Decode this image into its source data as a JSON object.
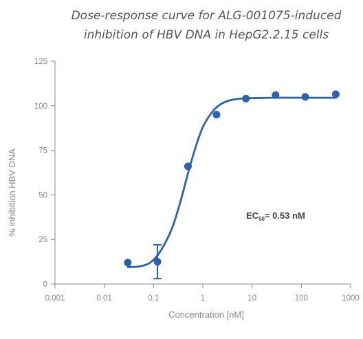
{
  "chart_data": {
    "type": "scatter",
    "title_lines": [
      "Dose-response curve for ALG-001075-induced",
      "inhibition of HBV DNA in HepG2.2.15 cells"
    ],
    "xlabel": "Concentration [nM]",
    "ylabel": "% inhibition HBV DNA",
    "x_scale": "log",
    "xlim": [
      0.001,
      1000
    ],
    "ylim": [
      0,
      125
    ],
    "x_ticks": [
      0.001,
      0.01,
      0.1,
      1,
      10,
      100,
      1000
    ],
    "x_tick_labels": [
      "0.001",
      "0.01",
      "0.1",
      "1",
      "10",
      "100",
      "1000"
    ],
    "y_ticks": [
      0,
      25,
      50,
      75,
      100,
      125
    ],
    "y_tick_labels": [
      "0",
      "25",
      "50",
      "75",
      "100",
      "125"
    ],
    "grid": false,
    "series": [
      {
        "points": [
          {
            "x": 0.03,
            "y": 12
          },
          {
            "x": 0.12,
            "y": 12.5,
            "error": [
              3,
              22
            ]
          },
          {
            "x": 0.5,
            "y": 66
          },
          {
            "x": 1.9,
            "y": 95
          },
          {
            "x": 7.5,
            "y": 104
          },
          {
            "x": 30,
            "y": 106
          },
          {
            "x": 120,
            "y": 105
          },
          {
            "x": 500,
            "y": 106.5
          }
        ]
      }
    ],
    "fit_curve": {
      "points": [
        [
          0.03,
          9.5
        ],
        [
          0.05,
          9.8
        ],
        [
          0.08,
          11.5
        ],
        [
          0.12,
          16
        ],
        [
          0.18,
          24
        ],
        [
          0.25,
          33
        ],
        [
          0.35,
          46
        ],
        [
          0.5,
          62
        ],
        [
          0.7,
          76
        ],
        [
          1.0,
          88
        ],
        [
          1.5,
          96
        ],
        [
          2.2,
          100.5
        ],
        [
          3.5,
          103
        ],
        [
          6,
          104
        ],
        [
          10,
          104.3
        ],
        [
          30,
          104.5
        ],
        [
          100,
          104.5
        ],
        [
          500,
          104.5
        ]
      ]
    },
    "annotation": {
      "prefix": "EC",
      "subscript": "50",
      "suffix": "= 0.53 nM"
    },
    "colors": {
      "series": "#2e62a8",
      "axis": "#8a8a8a",
      "title": "#555555",
      "annotation": "#444444"
    }
  }
}
